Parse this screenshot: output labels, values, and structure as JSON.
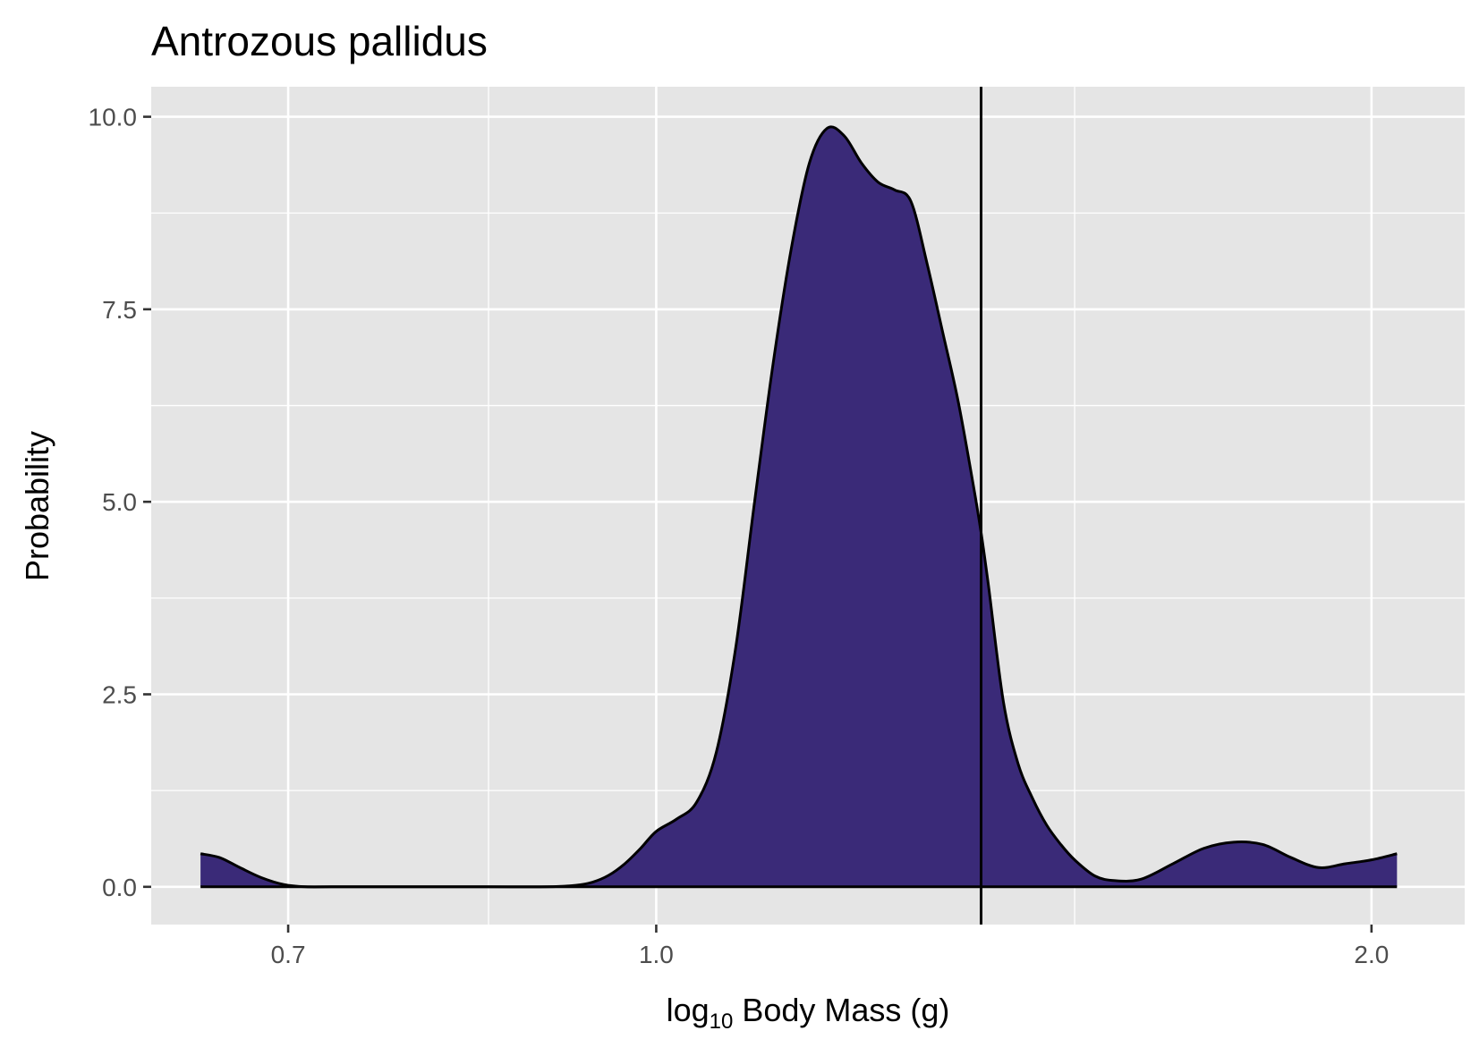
{
  "chart_data": {
    "type": "area",
    "title": "Antrozous pallidus",
    "xlabel": {
      "prefix": "log",
      "subscript": "10",
      "suffix": " Body Mass (g)"
    },
    "ylabel": "Probability",
    "x_scale": "log10",
    "x_ticks": [
      {
        "value": 0.7,
        "label": "0.7"
      },
      {
        "value": 1.0,
        "label": "1.0"
      },
      {
        "value": 2.0,
        "label": "2.0"
      }
    ],
    "x_minor_gridlines": [
      0.85,
      1.5
    ],
    "y_ticks": [
      {
        "value": 0.0,
        "label": "0.0"
      },
      {
        "value": 2.5,
        "label": "2.5"
      },
      {
        "value": 5.0,
        "label": "5.0"
      },
      {
        "value": 7.5,
        "label": "7.5"
      },
      {
        "value": 10.0,
        "label": "10.0"
      }
    ],
    "xlim": [
      0.613,
      2.189
    ],
    "ylim": [
      -0.49,
      10.39
    ],
    "grid": true,
    "vline_x": 1.37,
    "fill_color": "#3a2a78",
    "line_color": "#000000",
    "panel_color": "#e5e5e5",
    "series": [
      {
        "x": [
          0.643,
          0.655,
          0.668,
          0.682,
          0.697,
          0.712,
          0.73,
          0.75,
          0.8,
          0.85,
          0.9,
          0.925,
          0.94,
          0.955,
          0.97,
          0.985,
          1.0,
          1.02,
          1.04,
          1.06,
          1.08,
          1.1,
          1.12,
          1.14,
          1.16,
          1.18,
          1.2,
          1.22,
          1.24,
          1.26,
          1.28,
          1.3,
          1.32,
          1.34,
          1.36,
          1.37,
          1.38,
          1.4,
          1.42,
          1.44,
          1.46,
          1.48,
          1.5,
          1.53,
          1.56,
          1.6,
          1.65,
          1.7,
          1.75,
          1.8,
          1.85,
          1.9,
          1.95,
          2.0,
          2.05
        ],
        "y": [
          0.43,
          0.38,
          0.25,
          0.12,
          0.03,
          0.0,
          0.0,
          0.0,
          0.0,
          0.0,
          0.0,
          0.02,
          0.06,
          0.15,
          0.3,
          0.5,
          0.72,
          0.88,
          1.1,
          1.75,
          3.1,
          5.0,
          6.8,
          8.3,
          9.4,
          9.85,
          9.75,
          9.4,
          9.15,
          9.05,
          8.9,
          8.1,
          7.2,
          6.3,
          5.2,
          4.6,
          3.9,
          2.4,
          1.6,
          1.15,
          0.8,
          0.55,
          0.35,
          0.14,
          0.08,
          0.1,
          0.3,
          0.5,
          0.58,
          0.55,
          0.38,
          0.25,
          0.3,
          0.35,
          0.43
        ]
      }
    ]
  }
}
